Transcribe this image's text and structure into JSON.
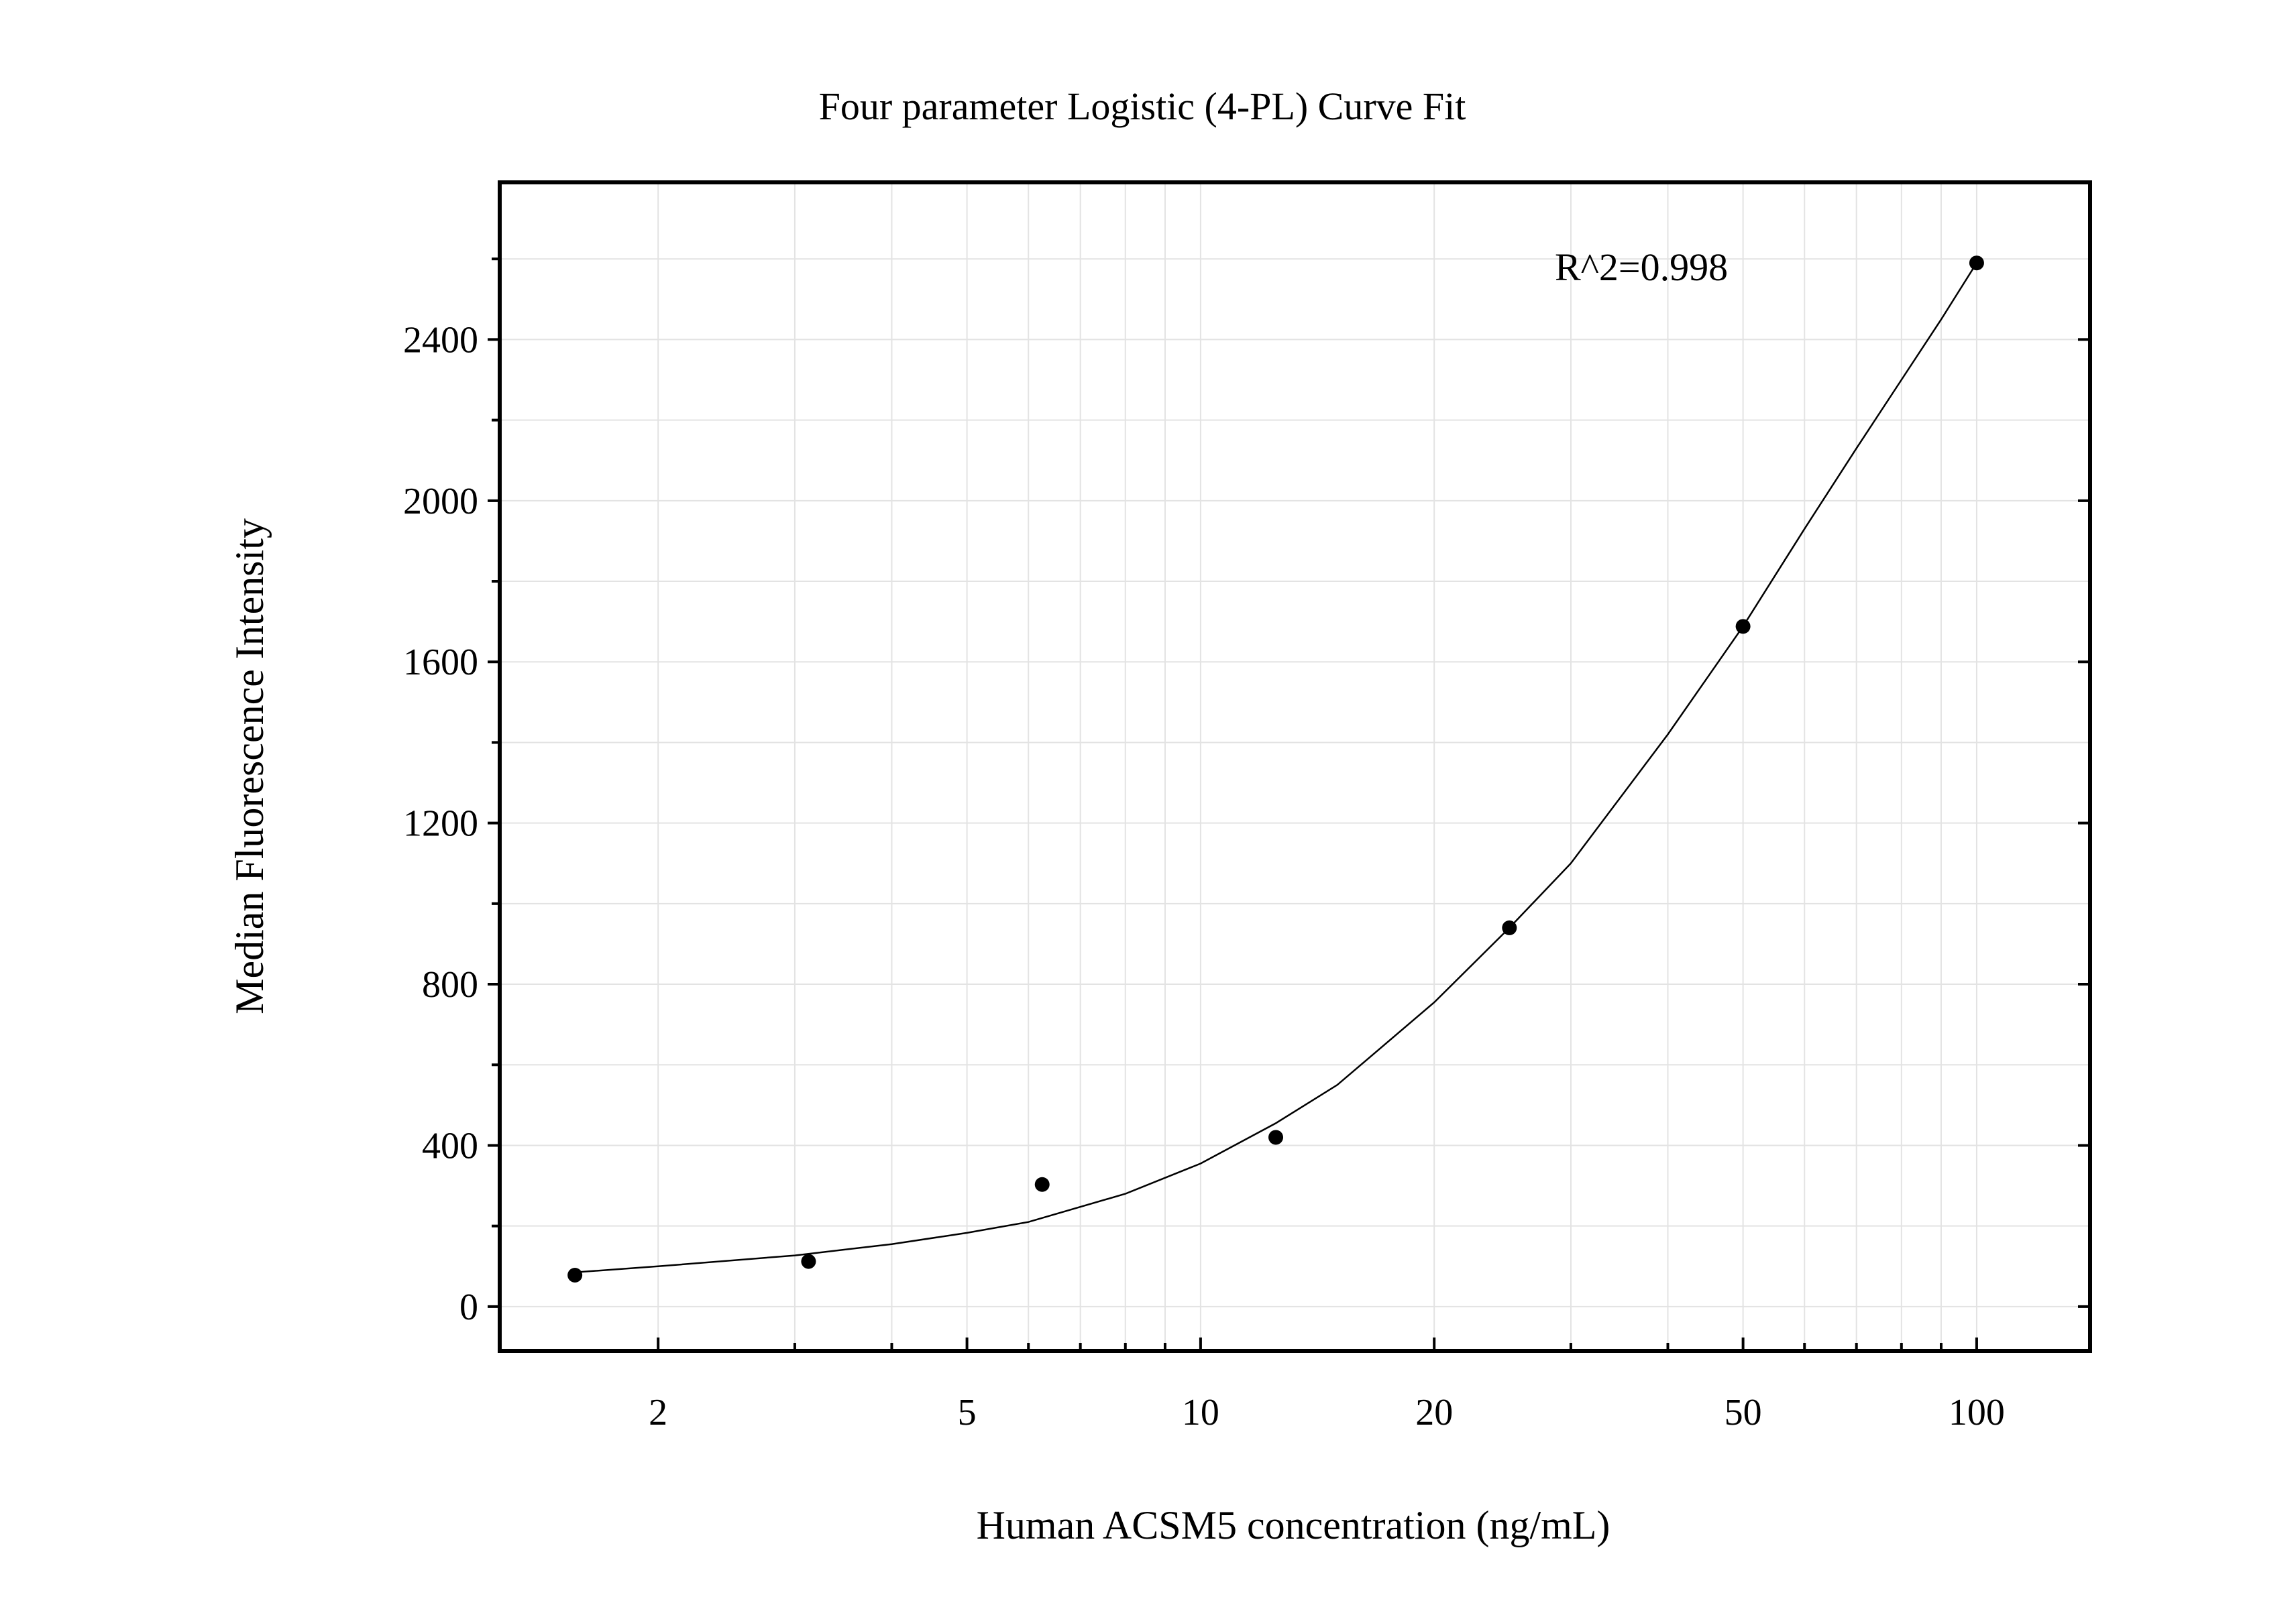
{
  "chart_data": {
    "type": "scatter",
    "title": "Four parameter Logistic (4-PL) Curve Fit",
    "xlabel": "Human ACSM5 concentration (ng/mL)",
    "ylabel": "Median Fluorescence Intensity",
    "x_scale": "log",
    "xlim": [
      1.25,
      140
    ],
    "ylim": [
      -110,
      2790
    ],
    "x_ticks": [
      2,
      5,
      10,
      20,
      50,
      100
    ],
    "x_tick_labels": [
      "2",
      "5",
      "10",
      "20",
      "50",
      "100"
    ],
    "y_ticks": [
      0,
      400,
      800,
      1200,
      1600,
      2000,
      2400
    ],
    "y_tick_labels": [
      "0",
      "400",
      "800",
      "1200",
      "1600",
      "2000",
      "2400"
    ],
    "y_minor_ticks": [
      200,
      600,
      1000,
      1400,
      1800,
      2200,
      2600
    ],
    "grid": true,
    "annotation": "R^2=0.998",
    "points": {
      "x": [
        1.5625,
        3.125,
        6.25,
        12.5,
        25,
        50,
        100
      ],
      "y": [
        78,
        112,
        303,
        420,
        940,
        1688,
        2590
      ]
    },
    "fit_curve": {
      "x": [
        1.5625,
        2,
        3,
        4,
        5,
        6,
        8,
        10,
        12.5,
        15,
        20,
        25,
        30,
        40,
        50,
        60,
        70,
        80,
        90,
        100
      ],
      "y": [
        85,
        100,
        127,
        155,
        183,
        210,
        280,
        355,
        455,
        550,
        755,
        940,
        1100,
        1420,
        1688,
        1930,
        2130,
        2300,
        2450,
        2590
      ]
    },
    "colors": {
      "points": "#000000",
      "curve": "#000000",
      "grid": "#e3e3e3",
      "frame": "#000000"
    }
  }
}
